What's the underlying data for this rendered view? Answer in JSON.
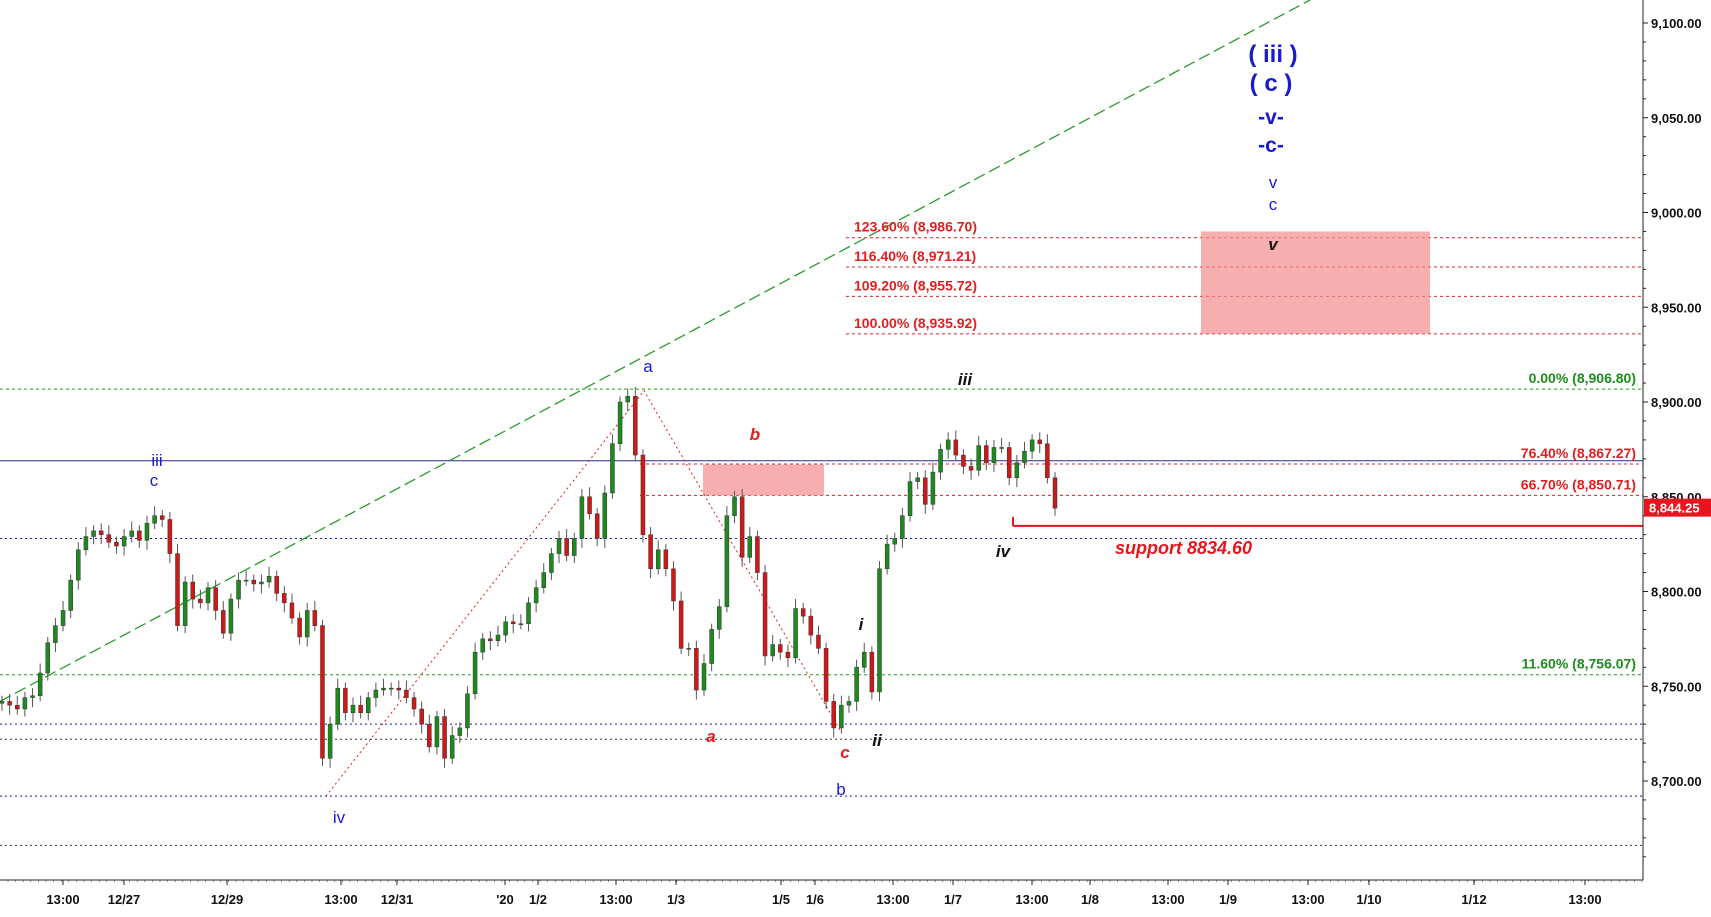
{
  "chart_data": {
    "type": "candlestick",
    "y_axis": {
      "ticks": [
        {
          "value": 9100,
          "label": "9,100.00"
        },
        {
          "value": 9050,
          "label": "9,050.00"
        },
        {
          "value": 9000,
          "label": "9,000.00"
        },
        {
          "value": 8950,
          "label": "8,950.00"
        },
        {
          "value": 8900,
          "label": "8,900.00"
        },
        {
          "value": 8850,
          "label": "8,850.00"
        },
        {
          "value": 8800,
          "label": "8,800.00"
        },
        {
          "value": 8750,
          "label": "8,750.00"
        },
        {
          "value": 8700,
          "label": "8,700.00"
        }
      ],
      "last_price": {
        "value": 8844.25,
        "label": "8,844.25",
        "color": "#e8141e"
      },
      "range": [
        8645,
        9112
      ]
    },
    "x_axis": {
      "ticks": [
        "13:00",
        "12/27",
        "12/29",
        "13:00",
        "12/31",
        "'20",
        "1/2",
        "13:00",
        "1/3",
        "1/5",
        "1/6",
        "13:00",
        "1/7",
        "13:00",
        "1/8",
        "13:00",
        "1/9",
        "13:00",
        "1/10",
        "1/12",
        "13:00"
      ]
    },
    "fib_levels_green": [
      {
        "value": 8906.8,
        "label": "0.00% (8,906.80)"
      },
      {
        "value": 8756.07,
        "label": "11.60% (8,756.07)"
      }
    ],
    "fib_levels_red": [
      {
        "value": 8867.27,
        "label": "76.40% (8,867.27)"
      },
      {
        "value": 8850.71,
        "label": "66.70% (8,850.71)"
      }
    ],
    "fib_extensions_red": [
      {
        "value": 8986.7,
        "label": "123.60% (8,986.70)"
      },
      {
        "value": 8971.21,
        "label": "116.40% (8,971.21)"
      },
      {
        "value": 8955.72,
        "label": "109.20% (8,955.72)"
      },
      {
        "value": 8935.92,
        "label": "100.00% (8,935.92)"
      }
    ],
    "blue_dotted_levels": [
      8828,
      8730,
      8692
    ],
    "black_dotted_levels": [
      8722,
      8666
    ],
    "solid_blue_level": 8869,
    "support": {
      "value": 8834.6,
      "label": "support 8834.60"
    },
    "wave_labels": {
      "blue": [
        "iii",
        "c",
        "iv",
        "a",
        "b",
        "( iii )",
        "( c )",
        "-v-",
        "-c-",
        "v",
        "c"
      ],
      "red": [
        "b",
        "a",
        "c"
      ],
      "black": [
        "iii",
        "iv",
        "i",
        "ii",
        "v"
      ]
    },
    "series": [
      {
        "name": "",
        "values": [
          8742,
          8740,
          8738,
          8744,
          8745,
          8757,
          8773,
          8782,
          8790,
          8806,
          8822,
          8829,
          8832,
          8830,
          8826,
          8824,
          8829,
          8832,
          8827,
          8836,
          8840,
          8838,
          8820,
          8782,
          8805,
          8796,
          8794,
          8802,
          8790,
          8778,
          8796,
          8806,
          8806,
          8804,
          8805,
          8808,
          8799,
          8794,
          8786,
          8776,
          8790,
          8782,
          8712,
          8730,
          8749,
          8736,
          8740,
          8736,
          8744,
          8748,
          8749,
          8749,
          8748,
          8744,
          8738,
          8730,
          8718,
          8734,
          8712,
          8724,
          8728,
          8746,
          8768,
          8775,
          8774,
          8777,
          8784,
          8783,
          8783,
          8794,
          8802,
          8810,
          8820,
          8828,
          8819,
          8828,
          8850,
          8841,
          8828,
          8852,
          8878,
          8900,
          8903,
          8872,
          8830,
          8812,
          8822,
          8812,
          8795,
          8770,
          8770,
          8748,
          8762,
          8780,
          8792,
          8840,
          8850,
          8818,
          8829,
          8810,
          8766,
          8772,
          8768,
          8765,
          8791,
          8787,
          8777,
          8770,
          8742,
          8728,
          8740,
          8742,
          8760,
          8768,
          8747,
          8812,
          8825,
          8828,
          8840,
          8858,
          8860,
          8846,
          8863,
          8875,
          8880,
          8872,
          8866,
          8864,
          8877,
          8868,
          8876,
          8876,
          8860,
          8868,
          8874,
          8880,
          8878,
          8860,
          8844
        ]
      }
    ]
  }
}
